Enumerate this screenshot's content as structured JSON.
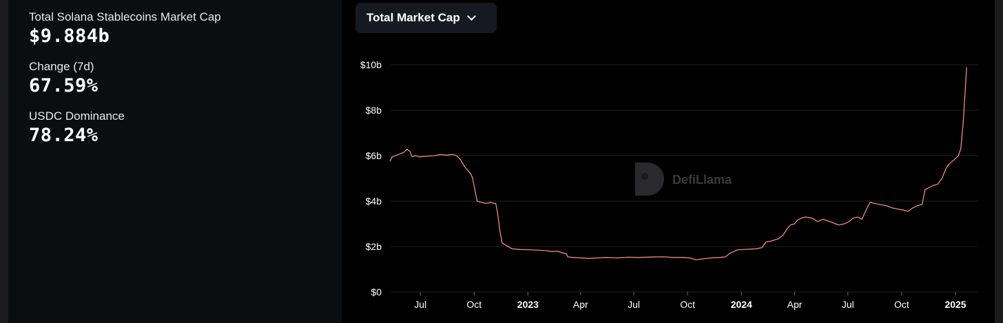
{
  "stats": [
    {
      "label": "Total Solana Stablecoins Market Cap",
      "value": "$9.884b"
    },
    {
      "label": "Change (7d)",
      "value": "67.59%"
    },
    {
      "label": "USDC Dominance",
      "value": "78.24%"
    }
  ],
  "selector": {
    "label": "Total Market Cap"
  },
  "watermark": "DefiLlama",
  "colors": {
    "line": "#f28b82",
    "grid": "#222222",
    "panel_left": "#0b0e11",
    "panel_right": "#000000"
  },
  "chart_data": {
    "type": "line",
    "ylim": [
      0,
      10
    ],
    "yunit": "b",
    "yticks": [
      "$0",
      "$2b",
      "$4b",
      "$6b",
      "$8b",
      "$10b"
    ],
    "ytick_values": [
      0,
      2,
      4,
      6,
      8,
      10
    ],
    "xticks": [
      {
        "label": "Jul",
        "date": "2022-07-01",
        "bold": false
      },
      {
        "label": "Oct",
        "date": "2022-10-01",
        "bold": false
      },
      {
        "label": "2023",
        "date": "2023-01-01",
        "bold": true
      },
      {
        "label": "Apr",
        "date": "2023-04-01",
        "bold": false
      },
      {
        "label": "Jul",
        "date": "2023-07-01",
        "bold": false
      },
      {
        "label": "Oct",
        "date": "2023-10-01",
        "bold": false
      },
      {
        "label": "2024",
        "date": "2024-01-01",
        "bold": true
      },
      {
        "label": "Apr",
        "date": "2024-04-01",
        "bold": false
      },
      {
        "label": "Jul",
        "date": "2024-07-01",
        "bold": false
      },
      {
        "label": "Oct",
        "date": "2024-10-01",
        "bold": false
      },
      {
        "label": "2025",
        "date": "2025-01-01",
        "bold": true
      }
    ],
    "xlim": [
      "2022-05-10",
      "2025-01-21"
    ],
    "grid": true,
    "series": [
      {
        "points": [
          [
            "2022-05-10",
            5.75
          ],
          [
            "2022-05-14",
            5.95
          ],
          [
            "2022-05-25",
            6.05
          ],
          [
            "2022-06-03",
            6.15
          ],
          [
            "2022-06-08",
            6.28
          ],
          [
            "2022-06-13",
            6.2
          ],
          [
            "2022-06-17",
            5.95
          ],
          [
            "2022-06-22",
            6.0
          ],
          [
            "2022-06-30",
            5.95
          ],
          [
            "2022-07-10",
            5.97
          ],
          [
            "2022-07-25",
            6.0
          ],
          [
            "2022-08-05",
            6.05
          ],
          [
            "2022-08-15",
            6.02
          ],
          [
            "2022-08-25",
            6.05
          ],
          [
            "2022-09-01",
            6.0
          ],
          [
            "2022-09-07",
            5.85
          ],
          [
            "2022-09-15",
            5.5
          ],
          [
            "2022-09-25",
            5.2
          ],
          [
            "2022-09-28",
            5.05
          ],
          [
            "2022-10-03",
            4.4
          ],
          [
            "2022-10-06",
            4.0
          ],
          [
            "2022-10-12",
            3.95
          ],
          [
            "2022-10-22",
            3.9
          ],
          [
            "2022-10-30",
            3.95
          ],
          [
            "2022-11-03",
            3.9
          ],
          [
            "2022-11-07",
            3.9
          ],
          [
            "2022-11-10",
            3.5
          ],
          [
            "2022-11-14",
            2.7
          ],
          [
            "2022-11-18",
            2.15
          ],
          [
            "2022-11-25",
            2.05
          ],
          [
            "2022-12-05",
            1.9
          ],
          [
            "2022-12-20",
            1.87
          ],
          [
            "2023-01-10",
            1.85
          ],
          [
            "2023-02-01",
            1.82
          ],
          [
            "2023-02-10",
            1.78
          ],
          [
            "2023-02-20",
            1.8
          ],
          [
            "2023-03-01",
            1.72
          ],
          [
            "2023-03-08",
            1.68
          ],
          [
            "2023-03-10",
            1.55
          ],
          [
            "2023-03-18",
            1.52
          ],
          [
            "2023-04-01",
            1.5
          ],
          [
            "2023-04-15",
            1.48
          ],
          [
            "2023-05-01",
            1.5
          ],
          [
            "2023-05-15",
            1.52
          ],
          [
            "2023-06-01",
            1.5
          ],
          [
            "2023-06-20",
            1.53
          ],
          [
            "2023-07-10",
            1.52
          ],
          [
            "2023-08-01",
            1.54
          ],
          [
            "2023-08-20",
            1.55
          ],
          [
            "2023-09-05",
            1.52
          ],
          [
            "2023-09-25",
            1.52
          ],
          [
            "2023-10-05",
            1.5
          ],
          [
            "2023-10-15",
            1.42
          ],
          [
            "2023-10-25",
            1.45
          ],
          [
            "2023-11-10",
            1.5
          ],
          [
            "2023-11-25",
            1.52
          ],
          [
            "2023-12-05",
            1.55
          ],
          [
            "2023-12-12",
            1.7
          ],
          [
            "2023-12-25",
            1.85
          ],
          [
            "2024-01-10",
            1.88
          ],
          [
            "2024-01-25",
            1.9
          ],
          [
            "2024-02-05",
            1.95
          ],
          [
            "2024-02-12",
            2.2
          ],
          [
            "2024-02-22",
            2.25
          ],
          [
            "2024-03-05",
            2.35
          ],
          [
            "2024-03-12",
            2.5
          ],
          [
            "2024-03-20",
            2.8
          ],
          [
            "2024-03-25",
            2.95
          ],
          [
            "2024-04-01",
            3.0
          ],
          [
            "2024-04-05",
            3.15
          ],
          [
            "2024-04-12",
            3.25
          ],
          [
            "2024-04-20",
            3.3
          ],
          [
            "2024-05-01",
            3.25
          ],
          [
            "2024-05-10",
            3.1
          ],
          [
            "2024-05-20",
            3.2
          ],
          [
            "2024-06-05",
            3.05
          ],
          [
            "2024-06-15",
            2.95
          ],
          [
            "2024-06-25",
            3.0
          ],
          [
            "2024-07-03",
            3.1
          ],
          [
            "2024-07-10",
            3.25
          ],
          [
            "2024-07-18",
            3.3
          ],
          [
            "2024-07-25",
            3.2
          ],
          [
            "2024-08-03",
            3.7
          ],
          [
            "2024-08-08",
            3.95
          ],
          [
            "2024-08-15",
            3.9
          ],
          [
            "2024-08-25",
            3.85
          ],
          [
            "2024-09-05",
            3.8
          ],
          [
            "2024-09-15",
            3.7
          ],
          [
            "2024-09-25",
            3.65
          ],
          [
            "2024-10-05",
            3.6
          ],
          [
            "2024-10-12",
            3.55
          ],
          [
            "2024-10-20",
            3.7
          ],
          [
            "2024-10-28",
            3.8
          ],
          [
            "2024-11-05",
            3.85
          ],
          [
            "2024-11-10",
            4.5
          ],
          [
            "2024-11-17",
            4.6
          ],
          [
            "2024-11-25",
            4.7
          ],
          [
            "2024-12-02",
            4.75
          ],
          [
            "2024-12-09",
            5.0
          ],
          [
            "2024-12-15",
            5.4
          ],
          [
            "2024-12-20",
            5.6
          ],
          [
            "2025-01-02",
            5.9
          ],
          [
            "2025-01-06",
            6.0
          ],
          [
            "2025-01-10",
            6.3
          ],
          [
            "2025-01-14",
            7.4
          ],
          [
            "2025-01-17",
            8.6
          ],
          [
            "2025-01-20",
            9.884
          ]
        ]
      }
    ]
  }
}
